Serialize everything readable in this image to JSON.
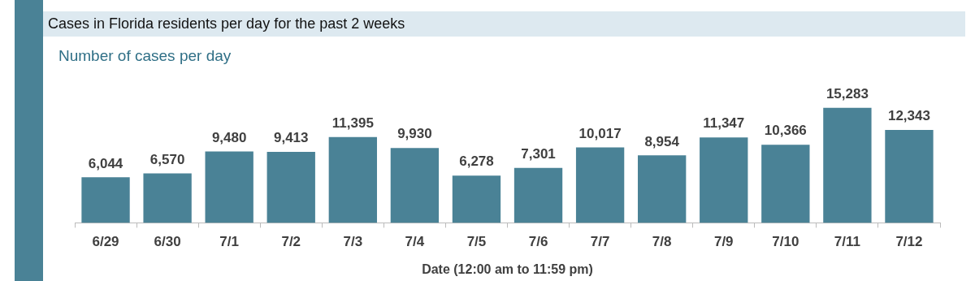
{
  "chart_data": {
    "type": "bar",
    "title": "Cases in Florida residents per day for the past 2 weeks",
    "subtitle": "Number of cases per day",
    "xlabel": "Date (12:00 am to 11:59 pm)",
    "categories": [
      "6/29",
      "6/30",
      "7/1",
      "7/2",
      "7/3",
      "7/4",
      "7/5",
      "7/6",
      "7/7",
      "7/8",
      "7/9",
      "7/10",
      "7/11",
      "7/12"
    ],
    "values": [
      6044,
      6570,
      9480,
      9413,
      11395,
      9930,
      6278,
      7301,
      10017,
      8954,
      11347,
      10366,
      15283,
      12343
    ],
    "value_labels": [
      "6,044",
      "6,570",
      "9,480",
      "9,413",
      "11,395",
      "9,930",
      "6,278",
      "7,301",
      "10,017",
      "8,954",
      "11,347",
      "10,366",
      "15,283",
      "12,343"
    ],
    "color": "#4a8296",
    "grid": false,
    "legend": false
  }
}
